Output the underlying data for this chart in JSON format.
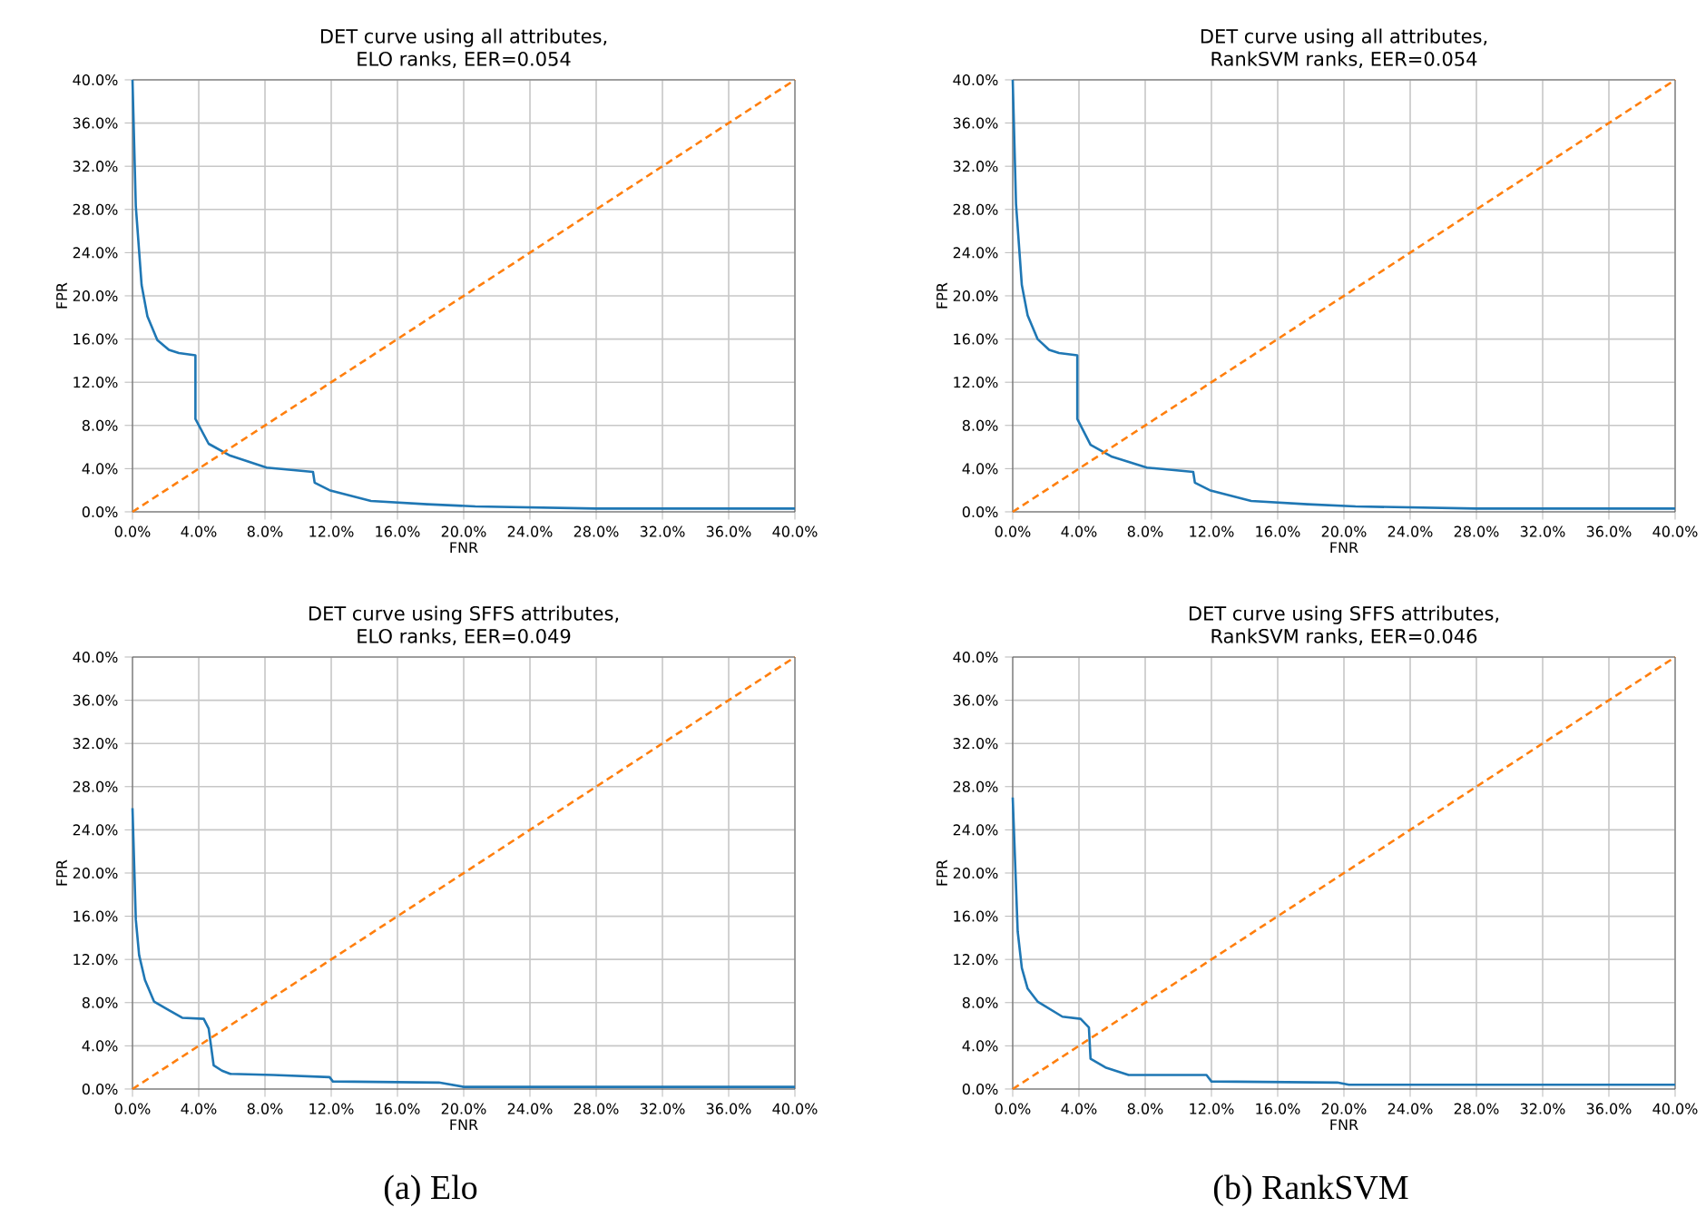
{
  "chart_data": [
    {
      "type": "line",
      "title": "DET curve using all attributes,",
      "subtitle": "ELO ranks, EER=0.054",
      "xlabel": "FNR",
      "ylabel": "FPR",
      "xlim": [
        0,
        40
      ],
      "ylim": [
        0,
        40
      ],
      "grid": true,
      "marker": "none",
      "xticks": [
        {
          "value": 0,
          "label": "0.0%"
        },
        {
          "value": 4,
          "label": "4.0%"
        },
        {
          "value": 8,
          "label": "8.0%"
        },
        {
          "value": 12,
          "label": "12.0%"
        },
        {
          "value": 16,
          "label": "16.0%"
        },
        {
          "value": 20,
          "label": "20.0%"
        },
        {
          "value": 24,
          "label": "24.0%"
        },
        {
          "value": 28,
          "label": "28.0%"
        },
        {
          "value": 32,
          "label": "32.0%"
        },
        {
          "value": 36,
          "label": "36.0%"
        },
        {
          "value": 40,
          "label": "40.0%"
        }
      ],
      "yticks": [
        {
          "value": 0,
          "label": "0.0%"
        },
        {
          "value": 4,
          "label": "4.0%"
        },
        {
          "value": 8,
          "label": "8.0%"
        },
        {
          "value": 12,
          "label": "12.0%"
        },
        {
          "value": 16,
          "label": "16.0%"
        },
        {
          "value": 20,
          "label": "20.0%"
        },
        {
          "value": 24,
          "label": "24.0%"
        },
        {
          "value": 28,
          "label": "28.0%"
        },
        {
          "value": 32,
          "label": "32.0%"
        },
        {
          "value": 36,
          "label": "36.0%"
        },
        {
          "value": 40,
          "label": "40.0%"
        }
      ],
      "series": [
        {
          "color": "#1f77b4",
          "line_style": "solid",
          "x": [
            0,
            0.2,
            0.55,
            0.9,
            1.5,
            2.2,
            2.8,
            3.8,
            3.8,
            4.6,
            5.9,
            8.1,
            10.9,
            11.0,
            11.9,
            14.4,
            17.8,
            20.7,
            28,
            40
          ],
          "values": [
            40,
            28.3,
            21,
            18.1,
            15.9,
            15,
            14.7,
            14.5,
            8.6,
            6.3,
            5.2,
            4.1,
            3.7,
            2.7,
            2.0,
            1.0,
            0.7,
            0.5,
            0.3,
            0.3
          ]
        },
        {
          "color": "#ff7f0e",
          "line_style": "dashed",
          "x": [
            0,
            40
          ],
          "values": [
            0,
            40
          ]
        }
      ]
    },
    {
      "type": "line",
      "title": "DET curve using all attributes,",
      "subtitle": "RankSVM ranks, EER=0.054",
      "xlabel": "FNR",
      "ylabel": "FPR",
      "xlim": [
        0,
        40
      ],
      "ylim": [
        0,
        40
      ],
      "grid": true,
      "marker": "none",
      "xticks": [
        {
          "value": 0,
          "label": "0.0%"
        },
        {
          "value": 4,
          "label": "4.0%"
        },
        {
          "value": 8,
          "label": "8.0%"
        },
        {
          "value": 12,
          "label": "12.0%"
        },
        {
          "value": 16,
          "label": "16.0%"
        },
        {
          "value": 20,
          "label": "20.0%"
        },
        {
          "value": 24,
          "label": "24.0%"
        },
        {
          "value": 28,
          "label": "28.0%"
        },
        {
          "value": 32,
          "label": "32.0%"
        },
        {
          "value": 36,
          "label": "36.0%"
        },
        {
          "value": 40,
          "label": "40.0%"
        }
      ],
      "yticks": [
        {
          "value": 0,
          "label": "0.0%"
        },
        {
          "value": 4,
          "label": "4.0%"
        },
        {
          "value": 8,
          "label": "8.0%"
        },
        {
          "value": 12,
          "label": "12.0%"
        },
        {
          "value": 16,
          "label": "16.0%"
        },
        {
          "value": 20,
          "label": "20.0%"
        },
        {
          "value": 24,
          "label": "24.0%"
        },
        {
          "value": 28,
          "label": "28.0%"
        },
        {
          "value": 32,
          "label": "32.0%"
        },
        {
          "value": 36,
          "label": "36.0%"
        },
        {
          "value": 40,
          "label": "40.0%"
        }
      ],
      "series": [
        {
          "color": "#1f77b4",
          "line_style": "solid",
          "x": [
            0,
            0.2,
            0.55,
            0.9,
            1.5,
            2.2,
            2.8,
            3.9,
            3.9,
            4.7,
            6.0,
            8.1,
            10.9,
            11.0,
            11.9,
            14.4,
            17.8,
            20.7,
            28,
            40
          ],
          "values": [
            40,
            28.5,
            21,
            18.2,
            16,
            15,
            14.7,
            14.5,
            8.6,
            6.2,
            5.1,
            4.1,
            3.7,
            2.7,
            2.0,
            1.0,
            0.7,
            0.5,
            0.3,
            0.3
          ]
        },
        {
          "color": "#ff7f0e",
          "line_style": "dashed",
          "x": [
            0,
            40
          ],
          "values": [
            0,
            40
          ]
        }
      ]
    },
    {
      "type": "line",
      "title": "DET curve using SFFS attributes,",
      "subtitle": "ELO ranks, EER=0.049",
      "xlabel": "FNR",
      "ylabel": "FPR",
      "xlim": [
        0,
        40
      ],
      "ylim": [
        0,
        40
      ],
      "grid": true,
      "marker": "none",
      "annotations": [
        "(a) Elo"
      ],
      "xticks": [
        {
          "value": 0,
          "label": "0.0%"
        },
        {
          "value": 4,
          "label": "4.0%"
        },
        {
          "value": 8,
          "label": "8.0%"
        },
        {
          "value": 12,
          "label": "12.0%"
        },
        {
          "value": 16,
          "label": "16.0%"
        },
        {
          "value": 20,
          "label": "20.0%"
        },
        {
          "value": 24,
          "label": "24.0%"
        },
        {
          "value": 28,
          "label": "28.0%"
        },
        {
          "value": 32,
          "label": "32.0%"
        },
        {
          "value": 36,
          "label": "36.0%"
        },
        {
          "value": 40,
          "label": "40.0%"
        }
      ],
      "yticks": [
        {
          "value": 0,
          "label": "0.0%"
        },
        {
          "value": 4,
          "label": "4.0%"
        },
        {
          "value": 8,
          "label": "8.0%"
        },
        {
          "value": 12,
          "label": "12.0%"
        },
        {
          "value": 16,
          "label": "16.0%"
        },
        {
          "value": 20,
          "label": "20.0%"
        },
        {
          "value": 24,
          "label": "24.0%"
        },
        {
          "value": 28,
          "label": "28.0%"
        },
        {
          "value": 32,
          "label": "32.0%"
        },
        {
          "value": 36,
          "label": "36.0%"
        },
        {
          "value": 40,
          "label": "40.0%"
        }
      ],
      "series": [
        {
          "color": "#1f77b4",
          "line_style": "solid",
          "x": [
            0,
            0.2,
            0.4,
            0.75,
            1.3,
            2.2,
            3.0,
            4.3,
            4.6,
            4.9,
            5.4,
            5.9,
            8.5,
            11.9,
            12.1,
            18.5,
            20.0,
            40
          ],
          "values": [
            26,
            15.7,
            12.4,
            10.1,
            8.1,
            7.3,
            6.6,
            6.5,
            5.6,
            2.2,
            1.7,
            1.4,
            1.3,
            1.1,
            0.7,
            0.6,
            0.2,
            0.2
          ]
        },
        {
          "color": "#ff7f0e",
          "line_style": "dashed",
          "x": [
            0,
            40
          ],
          "values": [
            0,
            40
          ]
        }
      ]
    },
    {
      "type": "line",
      "title": "DET curve using SFFS attributes,",
      "subtitle": "RankSVM ranks, EER=0.046",
      "xlabel": "FNR",
      "ylabel": "FPR",
      "xlim": [
        0,
        40
      ],
      "ylim": [
        0,
        40
      ],
      "grid": true,
      "marker": "none",
      "annotations": [
        "(b) RankSVM"
      ],
      "xticks": [
        {
          "value": 0,
          "label": "0.0%"
        },
        {
          "value": 4,
          "label": "4.0%"
        },
        {
          "value": 8,
          "label": "8.0%"
        },
        {
          "value": 12,
          "label": "12.0%"
        },
        {
          "value": 16,
          "label": "16.0%"
        },
        {
          "value": 20,
          "label": "20.0%"
        },
        {
          "value": 24,
          "label": "24.0%"
        },
        {
          "value": 28,
          "label": "28.0%"
        },
        {
          "value": 32,
          "label": "32.0%"
        },
        {
          "value": 36,
          "label": "36.0%"
        },
        {
          "value": 40,
          "label": "40.0%"
        }
      ],
      "yticks": [
        {
          "value": 0,
          "label": "0.0%"
        },
        {
          "value": 4,
          "label": "4.0%"
        },
        {
          "value": 8,
          "label": "8.0%"
        },
        {
          "value": 12,
          "label": "12.0%"
        },
        {
          "value": 16,
          "label": "16.0%"
        },
        {
          "value": 20,
          "label": "20.0%"
        },
        {
          "value": 24,
          "label": "24.0%"
        },
        {
          "value": 28,
          "label": "28.0%"
        },
        {
          "value": 32,
          "label": "32.0%"
        },
        {
          "value": 36,
          "label": "36.0%"
        },
        {
          "value": 40,
          "label": "40.0%"
        }
      ],
      "series": [
        {
          "color": "#1f77b4",
          "line_style": "solid",
          "x": [
            0,
            0.3,
            0.55,
            0.9,
            1.5,
            3.0,
            4.1,
            4.6,
            4.7,
            5.6,
            7.0,
            11.7,
            12.0,
            19.6,
            20.3,
            40
          ],
          "values": [
            27,
            14.6,
            11.2,
            9.3,
            8.1,
            6.7,
            6.5,
            5.7,
            2.8,
            2.0,
            1.3,
            1.3,
            0.7,
            0.6,
            0.4,
            0.4
          ]
        },
        {
          "color": "#ff7f0e",
          "line_style": "dashed",
          "x": [
            0,
            40
          ],
          "values": [
            0,
            40
          ]
        }
      ]
    }
  ]
}
